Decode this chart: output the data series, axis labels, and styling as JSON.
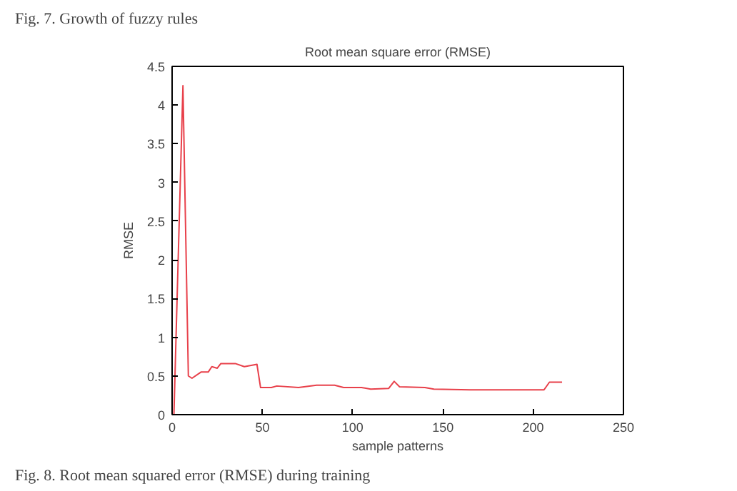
{
  "chart_data": {
    "type": "line",
    "title": "Root mean square error (RMSE)",
    "xlabel": "sample patterns",
    "ylabel": "RMSE",
    "x": [
      1,
      6,
      9,
      11,
      16,
      20,
      22,
      25,
      27,
      35,
      40,
      47,
      49,
      55,
      58,
      70,
      80,
      90,
      95,
      105,
      110,
      120,
      123,
      126,
      140,
      145,
      165,
      206,
      209,
      216
    ],
    "series": [
      {
        "color": "#e8404a",
        "values": [
          0,
          4.25,
          0.5,
          0.47,
          0.55,
          0.55,
          0.62,
          0.6,
          0.66,
          0.66,
          0.62,
          0.65,
          0.35,
          0.35,
          0.37,
          0.35,
          0.38,
          0.38,
          0.35,
          0.35,
          0.33,
          0.34,
          0.43,
          0.36,
          0.35,
          0.33,
          0.32,
          0.32,
          0.42,
          0.42
        ]
      }
    ],
    "xlim": [
      0,
      250
    ],
    "ylim": [
      0,
      4.5
    ],
    "xticks": [
      0,
      50,
      100,
      150,
      200,
      250
    ],
    "yticks": [
      0,
      0.5,
      1,
      1.5,
      2,
      2.5,
      3,
      3.5,
      4,
      4.5
    ],
    "grid": false,
    "annotations": [
      "Fig. 7. Growth of fuzzy rules",
      "Fig. 8. Root mean squared error (RMSE) during training"
    ]
  }
}
